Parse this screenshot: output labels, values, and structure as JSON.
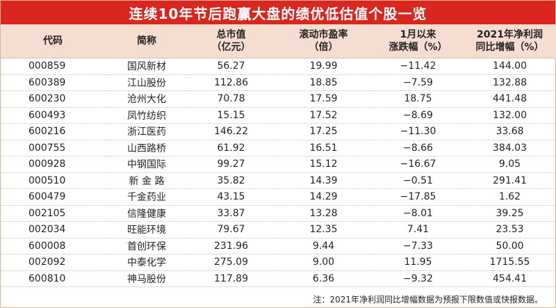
{
  "title": "连续10年节后跑赢大盘的绩优低估值个股一览",
  "headers": [
    {
      "line1": "代码",
      "line2": ""
    },
    {
      "line1": "简称",
      "line2": ""
    },
    {
      "line1": "总市值",
      "line2": "（亿元）"
    },
    {
      "line1": "滚动市盈率",
      "line2": "（倍）"
    },
    {
      "line1": "1月以来",
      "line2": "涨跌幅（%）"
    },
    {
      "line1": "2021年净利润",
      "line2": "同比增幅（%）"
    }
  ],
  "rows": [
    {
      "code": "000859",
      "name": "国风新材",
      "mcap": "56.27",
      "pe": "19.99",
      "chg": "−11.42",
      "growth": "144.00"
    },
    {
      "code": "600389",
      "name": "江山股份",
      "mcap": "112.86",
      "pe": "18.85",
      "chg": "−7.59",
      "growth": "132.88"
    },
    {
      "code": "600230",
      "name": "沧州大化",
      "mcap": "70.78",
      "pe": "17.59",
      "chg": "18.75",
      "growth": "441.48"
    },
    {
      "code": "600493",
      "name": "凤竹纺织",
      "mcap": "15.15",
      "pe": "17.52",
      "chg": "−8.69",
      "growth": "132.00"
    },
    {
      "code": "600216",
      "name": "浙江医药",
      "mcap": "146.22",
      "pe": "17.25",
      "chg": "−11.30",
      "growth": "33.68"
    },
    {
      "code": "000755",
      "name": "山西路桥",
      "mcap": "61.92",
      "pe": "16.51",
      "chg": "−8.66",
      "growth": "384.03"
    },
    {
      "code": "000928",
      "name": "中钢国际",
      "mcap": "99.27",
      "pe": "15.12",
      "chg": "−16.67",
      "growth": "9.05"
    },
    {
      "code": "000510",
      "name": "新 金 路",
      "mcap": "35.82",
      "pe": "14.39",
      "chg": "−0.51",
      "growth": "291.41"
    },
    {
      "code": "600479",
      "name": "千金药业",
      "mcap": "43.15",
      "pe": "14.29",
      "chg": "−17.85",
      "growth": "1.62"
    },
    {
      "code": "002105",
      "name": "信隆健康",
      "mcap": "33.87",
      "pe": "13.28",
      "chg": "−8.01",
      "growth": "39.25"
    },
    {
      "code": "002034",
      "name": "旺能环境",
      "mcap": "79.67",
      "pe": "12.35",
      "chg": "7.41",
      "growth": "23.53"
    },
    {
      "code": "600008",
      "name": "首创环保",
      "mcap": "231.96",
      "pe": "9.44",
      "chg": "−7.33",
      "growth": "50.00"
    },
    {
      "code": "002092",
      "name": "中泰化学",
      "mcap": "275.09",
      "pe": "9.00",
      "chg": "11.95",
      "growth": "1715.55"
    },
    {
      "code": "600810",
      "name": "神马股份",
      "mcap": "117.89",
      "pe": "6.36",
      "chg": "−9.32",
      "growth": "454.41"
    }
  ],
  "footnote": "注：2021年净利润同比增幅数据为预报下限数值或快报数据。",
  "colors": {
    "title_bg": "#d9271f",
    "header_bg": "#f6ddd1",
    "row_divider": "#e3bfae"
  }
}
